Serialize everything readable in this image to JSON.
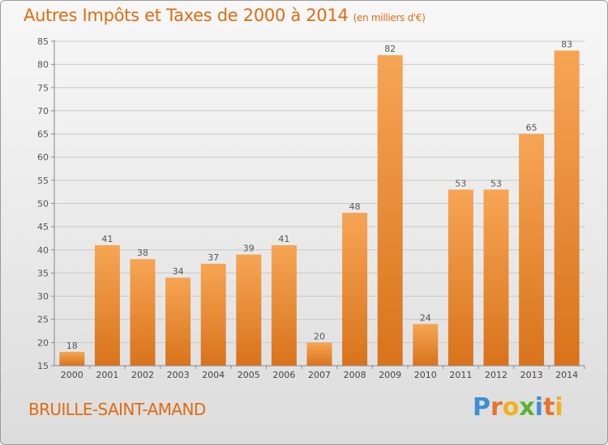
{
  "header": {
    "title": "Autres Impôts et Taxes de 2000 à 2014",
    "unit": "(en milliers d'€)"
  },
  "footer": {
    "commune": "BRUILLE-SAINT-AMAND",
    "logo_letters": [
      "P",
      "r",
      "o",
      "x",
      "i",
      "t",
      "i"
    ],
    "logo_colors": [
      "#3d8fd6",
      "#e8732a",
      "#f2b01d",
      "#5cb032",
      "#3d8fd6",
      "#e8732a",
      "#f2b01d"
    ]
  },
  "colors": {
    "bar_light": "#f6a555",
    "bar_dark": "#d9731b",
    "title": "#e06b12",
    "axis": "#888888",
    "grid": "#c8c8c8"
  },
  "chart_data": {
    "type": "bar",
    "title": "Autres Impôts et Taxes de 2000 à 2014",
    "subtitle": "(en milliers d'€)",
    "categories": [
      "2000",
      "2001",
      "2002",
      "2003",
      "2004",
      "2005",
      "2006",
      "2007",
      "2008",
      "2009",
      "2010",
      "2011",
      "2012",
      "2013",
      "2014"
    ],
    "values": [
      18,
      41,
      38,
      34,
      37,
      39,
      41,
      20,
      48,
      82,
      24,
      53,
      53,
      65,
      83
    ],
    "data_labels": [
      "18",
      "41",
      "38",
      "34",
      "37",
      "39",
      "41",
      "20",
      "48",
      "82",
      "24",
      "53",
      "53",
      "65",
      "83"
    ],
    "ylim": [
      15,
      85
    ],
    "yticks": [
      "15",
      "20",
      "25",
      "30",
      "35",
      "40",
      "45",
      "50",
      "55",
      "60",
      "65",
      "70",
      "75",
      "80",
      "85"
    ],
    "xlabel": "",
    "ylabel": "",
    "grid": true,
    "legend": "none"
  }
}
